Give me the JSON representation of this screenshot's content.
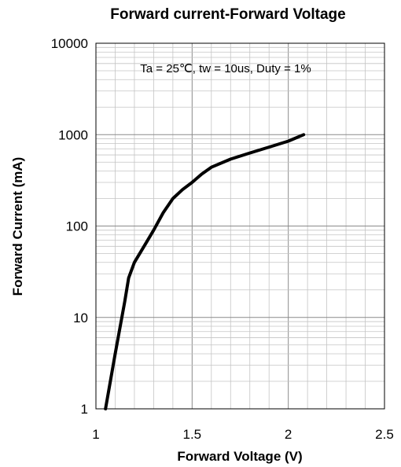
{
  "chart_data": {
    "type": "line",
    "title": "Forward current-Forward Voltage",
    "xlabel": "Forward Voltage (V)",
    "ylabel": "Forward Current (mA)",
    "annotation": "Ta = 25℃, tw = 10us, Duty = 1%",
    "xlim": [
      1,
      2.5
    ],
    "ylim": [
      1,
      10000
    ],
    "yscale": "log",
    "grid": true,
    "x_ticks": [
      "1",
      "1.5",
      "2",
      "2.5"
    ],
    "y_ticks": [
      "1",
      "10",
      "100",
      "1000",
      "10000"
    ],
    "series": [
      {
        "x": [
          1.05,
          1.1,
          1.15,
          1.17,
          1.2,
          1.25,
          1.3,
          1.35,
          1.4,
          1.45,
          1.5,
          1.55,
          1.6,
          1.7,
          1.8,
          1.9,
          2.0,
          2.08
        ],
        "y": [
          1,
          4,
          15,
          27,
          40,
          60,
          90,
          140,
          200,
          250,
          300,
          370,
          440,
          540,
          630,
          730,
          850,
          1000
        ]
      }
    ]
  }
}
